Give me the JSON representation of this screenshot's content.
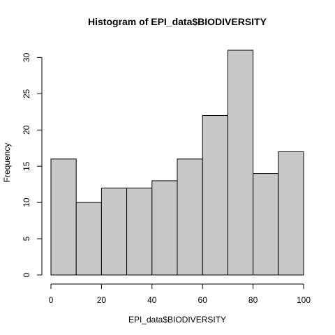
{
  "chart_data": {
    "type": "bar",
    "title": "Histogram of EPI_data$BIODIVERSITY",
    "xlabel": "EPI_data$BIODIVERSITY",
    "ylabel": "Frequency",
    "bins": [
      {
        "from": 0,
        "to": 10,
        "count": 16
      },
      {
        "from": 10,
        "to": 20,
        "count": 10
      },
      {
        "from": 20,
        "to": 30,
        "count": 12
      },
      {
        "from": 30,
        "to": 40,
        "count": 12
      },
      {
        "from": 40,
        "to": 50,
        "count": 13
      },
      {
        "from": 50,
        "to": 60,
        "count": 16
      },
      {
        "from": 60,
        "to": 70,
        "count": 22
      },
      {
        "from": 70,
        "to": 80,
        "count": 31
      },
      {
        "from": 80,
        "to": 90,
        "count": 14
      },
      {
        "from": 90,
        "to": 100,
        "count": 17
      }
    ],
    "xlim": [
      0,
      100
    ],
    "ylim": [
      0,
      31
    ],
    "xticks": [
      0,
      20,
      40,
      60,
      80,
      100
    ],
    "yticks": [
      0,
      5,
      10,
      15,
      20,
      25,
      30
    ],
    "grid": false,
    "bar_color": "#c8c8c8"
  }
}
